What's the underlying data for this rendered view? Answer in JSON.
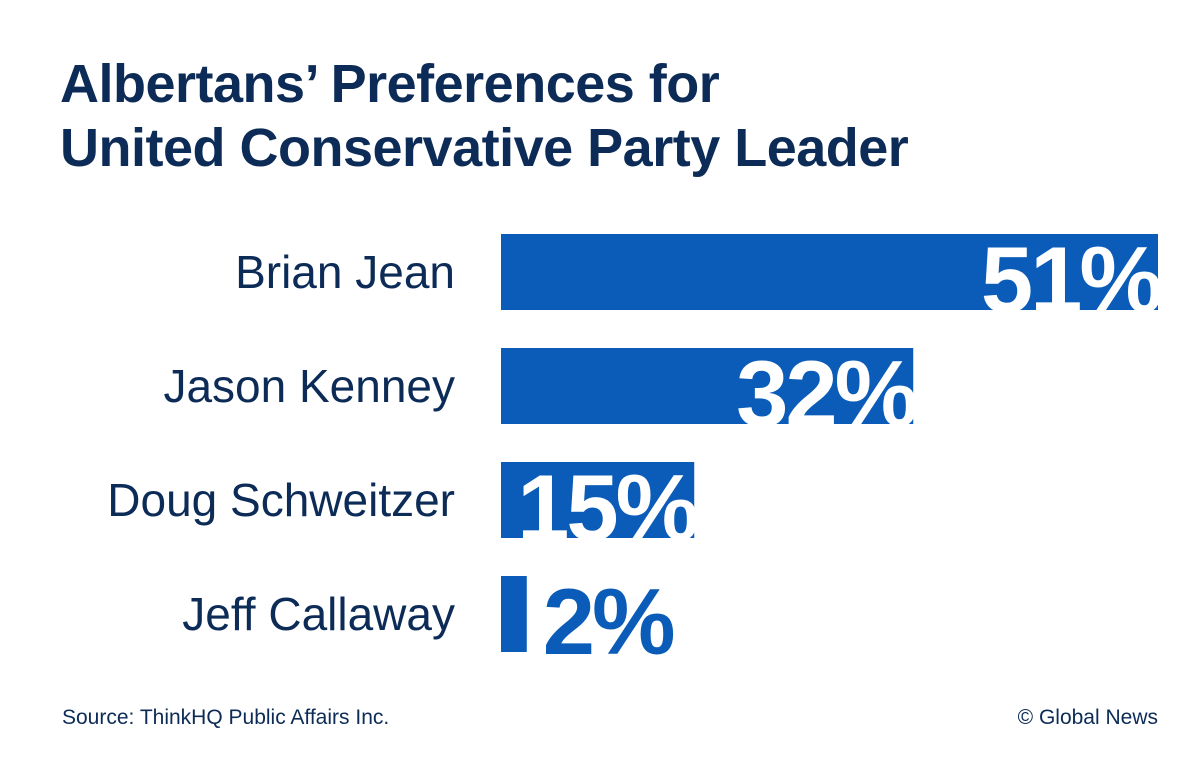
{
  "chart_data": {
    "type": "bar",
    "orientation": "horizontal",
    "title_lines": [
      "Albertans’ Preferences for",
      "United Conservative Party Leader"
    ],
    "categories": [
      "Brian Jean",
      "Jason Kenney",
      "Doug Schweitzer",
      "Jeff Callaway"
    ],
    "values": [
      51,
      32,
      15,
      2
    ],
    "value_labels": [
      "51%",
      "32%",
      "15%",
      "2%"
    ],
    "unit": "%",
    "xlim": [
      0,
      51
    ],
    "grid": false,
    "colors": {
      "bar": "#0a5cb8",
      "text": "#0c2b57",
      "label_inside": "#ffffff"
    }
  },
  "footer": {
    "source": "Source: ThinkHQ Public Affairs Inc.",
    "credit": "© Global News"
  }
}
